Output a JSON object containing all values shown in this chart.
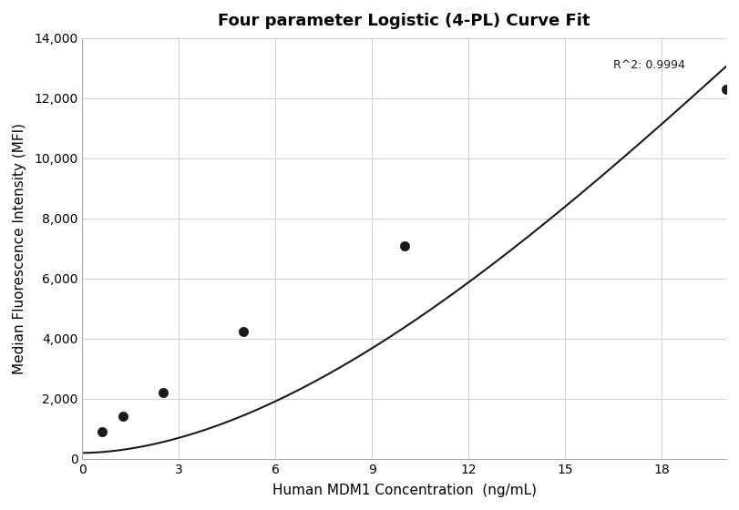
{
  "title": "Four parameter Logistic (4-PL) Curve Fit",
  "xlabel": "Human MDM1 Concentration  (ng/mL)",
  "ylabel": "Median Fluorescence Intensity (MFI)",
  "x_data": [
    0.625,
    1.25,
    2.5,
    5.0,
    10.0,
    20.0
  ],
  "y_data": [
    900,
    1420,
    2200,
    4250,
    7100,
    12300
  ],
  "r_squared": "R^2: 0.9994",
  "xlim": [
    0,
    20
  ],
  "ylim": [
    0,
    14000
  ],
  "xticks": [
    0,
    3,
    6,
    9,
    12,
    15,
    18
  ],
  "yticks": [
    0,
    2000,
    4000,
    6000,
    8000,
    10000,
    12000,
    14000
  ],
  "dot_color": "#1a1a1a",
  "line_color": "#1a1a1a",
  "grid_color": "#d0d0d0",
  "background_color": "#ffffff",
  "title_fontsize": 13,
  "label_fontsize": 11,
  "tick_fontsize": 10,
  "annotation_fontsize": 9,
  "figsize": [
    8.11,
    5.6
  ],
  "dpi": 100
}
